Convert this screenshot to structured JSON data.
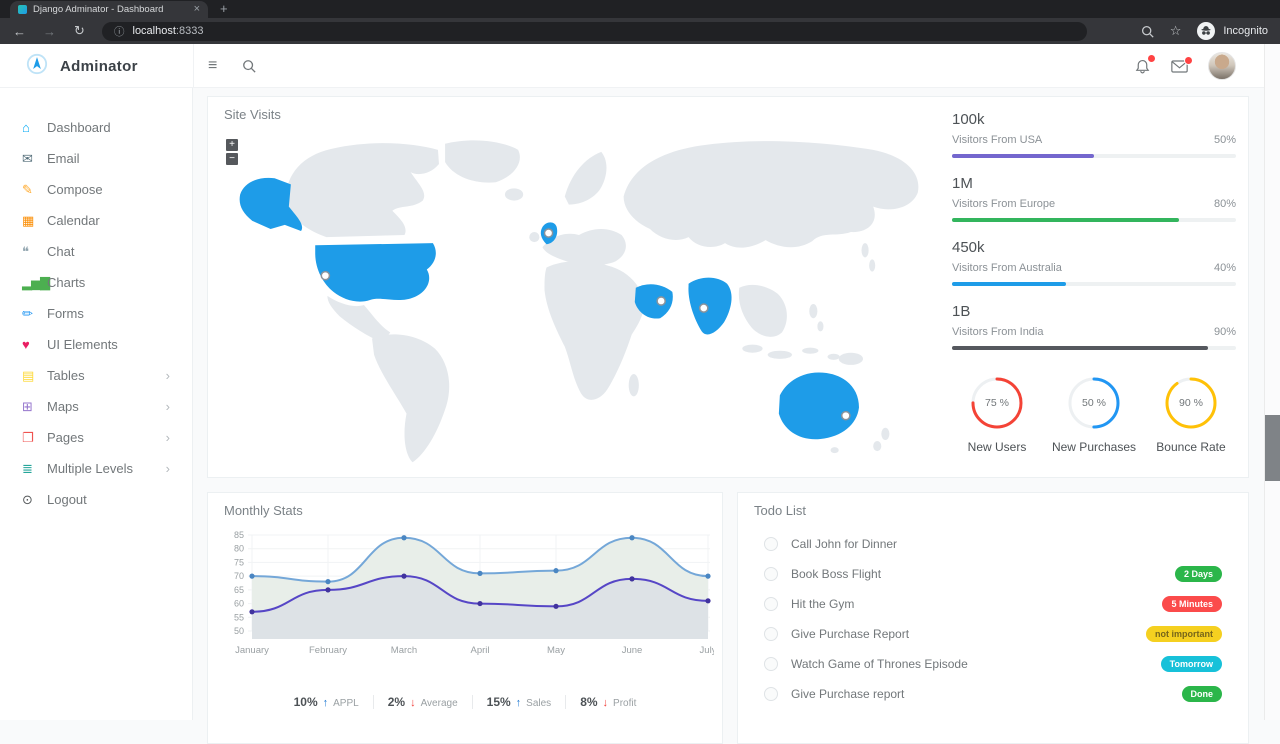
{
  "browser": {
    "tab_title": "Django Adminator - Dashboard",
    "url_host": "localhost",
    "url_port": ":8333",
    "profile_label": "Incognito",
    "icons": {
      "back": "←",
      "forward": "→",
      "reload": "↻",
      "info": "ⓘ",
      "star": "☆",
      "close": "×",
      "new_tab": "+"
    }
  },
  "header": {
    "brand": "Adminator",
    "menu_glyph": "≡"
  },
  "sidebar": {
    "chevron_glyph": "›",
    "items": [
      {
        "label": "Dashboard",
        "icon": "home-icon",
        "glyph": "⌂",
        "color": "#03a9f4",
        "expandable": false
      },
      {
        "label": "Email",
        "icon": "email-icon",
        "glyph": "✉",
        "color": "#546e7a",
        "expandable": false
      },
      {
        "label": "Compose",
        "icon": "compose-icon",
        "glyph": "✎",
        "color": "#ffa726",
        "expandable": false
      },
      {
        "label": "Calendar",
        "icon": "calendar-icon",
        "glyph": "▦",
        "color": "#fb8c00",
        "expandable": false
      },
      {
        "label": "Chat",
        "icon": "chat-icon",
        "glyph": "❝",
        "color": "#90a4ae",
        "expandable": false
      },
      {
        "label": "Charts",
        "icon": "charts-icon",
        "glyph": "▂▅▇",
        "color": "#4caf50",
        "expandable": false
      },
      {
        "label": "Forms",
        "icon": "forms-icon",
        "glyph": "✏",
        "color": "#2196f3",
        "expandable": false
      },
      {
        "label": "UI Elements",
        "icon": "ui-elements-icon",
        "glyph": "♥",
        "color": "#e91e63",
        "expandable": false
      },
      {
        "label": "Tables",
        "icon": "tables-icon",
        "glyph": "▤",
        "color": "#fdd835",
        "expandable": true
      },
      {
        "label": "Maps",
        "icon": "maps-icon",
        "glyph": "⊞",
        "color": "#9575cd",
        "expandable": true
      },
      {
        "label": "Pages",
        "icon": "pages-icon",
        "glyph": "❐",
        "color": "#ef5350",
        "expandable": true
      },
      {
        "label": "Multiple Levels",
        "icon": "layers-icon",
        "glyph": "≣",
        "color": "#26a69a",
        "expandable": true
      },
      {
        "label": "Logout",
        "icon": "power-icon",
        "glyph": "⊙",
        "color": "#565a5c",
        "expandable": false
      }
    ]
  },
  "main": {
    "site_visits": {
      "title": "Site Visits",
      "map": {
        "zoom_in": "+",
        "zoom_out": "−",
        "land_color": "#e4e8ec",
        "highlight_color": "#1e9ce8",
        "highlighted_regions": [
          "United States",
          "United Kingdom",
          "Saudi Arabia",
          "India",
          "Australia"
        ]
      },
      "visitor_stats": [
        {
          "value": "100k",
          "label": "Visitors From USA",
          "percent": "50%",
          "pct": 50,
          "color": "#7467ce"
        },
        {
          "value": "1M",
          "label": "Visitors From Europe",
          "percent": "80%",
          "pct": 80,
          "color": "#33b55d"
        },
        {
          "value": "450k",
          "label": "Visitors From Australia",
          "percent": "40%",
          "pct": 40,
          "color": "#1e9ce8"
        },
        {
          "value": "1B",
          "label": "Visitors From India",
          "percent": "90%",
          "pct": 90,
          "color": "#55585e"
        }
      ],
      "donuts": [
        {
          "percent_label": "75 %",
          "pct": 75,
          "color": "#f44336",
          "label": "New Users"
        },
        {
          "percent_label": "50 %",
          "pct": 50,
          "color": "#2196f3",
          "label": "New Purchases"
        },
        {
          "percent_label": "90 %",
          "pct": 90,
          "color": "#ffc107",
          "label": "Bounce Rate"
        }
      ]
    },
    "todo": {
      "title": "Todo List",
      "items": [
        {
          "label": "Call John for Dinner",
          "badge": null
        },
        {
          "label": "Book Boss Flight",
          "badge": {
            "text": "2 Days",
            "bg": "#2bb64a",
            "fg": "#ffffff"
          }
        },
        {
          "label": "Hit the Gym",
          "badge": {
            "text": "5 Minutes",
            "bg": "#fb4b4b",
            "fg": "#ffffff"
          }
        },
        {
          "label": "Give Purchase Report",
          "badge": {
            "text": "not important",
            "bg": "#f5d020",
            "fg": "#77661a"
          }
        },
        {
          "label": "Watch Game of Thrones Episode",
          "badge": {
            "text": "Tomorrow",
            "bg": "#17c1d9",
            "fg": "#ffffff"
          }
        },
        {
          "label": "Give Purchase report",
          "badge": {
            "text": "Done",
            "bg": "#2bb64a",
            "fg": "#ffffff"
          }
        }
      ]
    }
  },
  "chart_data": {
    "type": "line",
    "title": "Monthly Stats",
    "categories": [
      "January",
      "February",
      "March",
      "April",
      "May",
      "June",
      "July"
    ],
    "series": [
      {
        "name": "upper-series",
        "color": "#74a7d8",
        "fill": "#e8eee9",
        "dot": "#4a86c2",
        "values": [
          70,
          68,
          84,
          71,
          72,
          84,
          70
        ]
      },
      {
        "name": "lower-series",
        "color": "#5646c6",
        "fill": "rgba(86,70,198,0.07)",
        "dot": "#41339e",
        "values": [
          57,
          65,
          70,
          60,
          59,
          69,
          61
        ]
      }
    ],
    "ylim": [
      50,
      85
    ],
    "yticks": [
      85,
      80,
      75,
      70,
      65,
      60,
      55,
      50
    ],
    "grid": true,
    "legend_position": "none",
    "footer_stats": [
      {
        "value": "10%",
        "direction": "up",
        "label": "APPL"
      },
      {
        "value": "2%",
        "direction": "down",
        "label": "Average"
      },
      {
        "value": "15%",
        "direction": "up",
        "label": "Sales"
      },
      {
        "value": "8%",
        "direction": "down",
        "label": "Profit"
      }
    ],
    "arrow_up_color": "#1d78d2",
    "arrow_down_color": "#f0413c"
  }
}
